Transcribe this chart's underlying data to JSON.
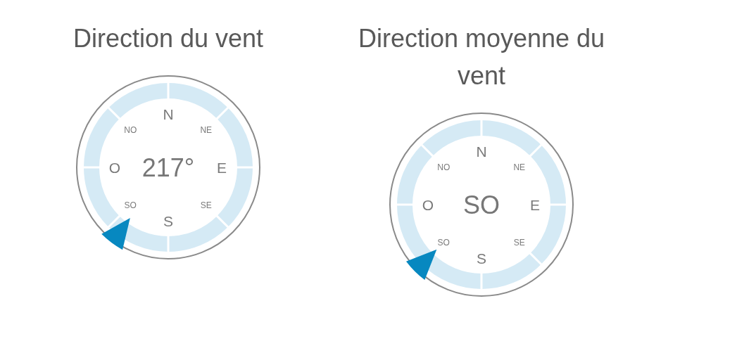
{
  "chart_data": [
    {
      "type": "other",
      "title": "Direction du vent",
      "annotations": [
        "N",
        "NE",
        "E",
        "SE",
        "S",
        "SO",
        "O",
        "NO"
      ],
      "values": [
        217
      ],
      "value_labels": [
        "217°"
      ],
      "color": "#0788c0"
    },
    {
      "type": "other",
      "title": "Direction moyenne du vent",
      "categories": [
        "N",
        "NE",
        "E",
        "SE",
        "S",
        "SO",
        "O",
        "NO"
      ],
      "needle": "SO",
      "color": "#0788c0"
    }
  ]
}
